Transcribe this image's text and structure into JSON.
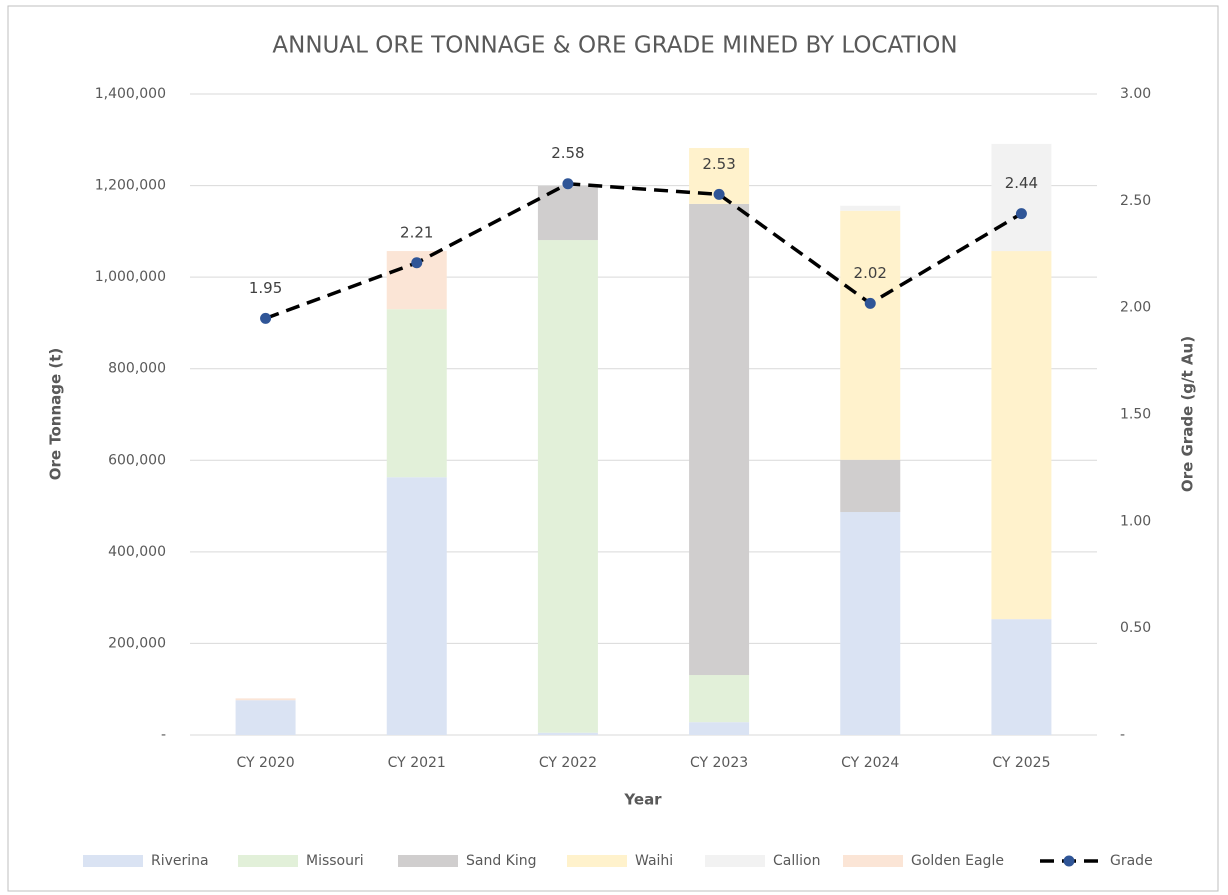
{
  "chart_data": {
    "type": "stacked-bar-line",
    "title": "ANNUAL ORE TONNAGE & ORE GRADE MINED BY LOCATION",
    "x_label": "Year",
    "y_label": "Ore Tonnage  (t)",
    "y2_label": "Ore Grade  (g/t Au)",
    "categories": [
      "CY 2020",
      "CY 2021",
      "CY 2022",
      "CY 2023",
      "CY 2024",
      "CY 2025"
    ],
    "series": [
      {
        "name": "Riverina",
        "color": "#dae3f3",
        "values": [
          76000,
          563000,
          5000,
          28000,
          487000,
          253000
        ]
      },
      {
        "name": "Missouri",
        "color": "#e2f0d9",
        "values": [
          0,
          367000,
          1076000,
          103000,
          0,
          0
        ]
      },
      {
        "name": "Sand King",
        "color": "#d0cece",
        "values": [
          0,
          0,
          118000,
          1029000,
          114000,
          0
        ]
      },
      {
        "name": "Waihi",
        "color": "#fff2cc",
        "values": [
          0,
          0,
          0,
          122000,
          544000,
          804000
        ]
      },
      {
        "name": "Callion",
        "color": "#f2f2f2",
        "values": [
          0,
          0,
          0,
          0,
          11000,
          234000
        ]
      },
      {
        "name": "Golden Eagle",
        "color": "#fbe5d6",
        "values": [
          4000,
          127000,
          0,
          0,
          0,
          0
        ]
      },
      {
        "name": "Grade",
        "color": "#000000",
        "marker_color": "#2f5597",
        "axis": "y2",
        "values": [
          1.95,
          2.21,
          2.58,
          2.53,
          2.02,
          2.44
        ]
      }
    ],
    "ylim": [
      0,
      1400000
    ],
    "yticks": [
      {
        "value": 0,
        "label": "-"
      },
      {
        "value": 200000,
        "label": "200,000"
      },
      {
        "value": 400000,
        "label": "400,000"
      },
      {
        "value": 600000,
        "label": "600,000"
      },
      {
        "value": 800000,
        "label": "800,000"
      },
      {
        "value": 1000000,
        "label": "1,000,000"
      },
      {
        "value": 1200000,
        "label": "1,200,000"
      },
      {
        "value": 1400000,
        "label": "1,400,000"
      }
    ],
    "y2lim": [
      0,
      3
    ],
    "y2ticks": [
      {
        "value": 0,
        "label": "-"
      },
      {
        "value": 0.5,
        "label": "0.50"
      },
      {
        "value": 1,
        "label": "1.00"
      },
      {
        "value": 1.5,
        "label": "1.50"
      },
      {
        "value": 2,
        "label": "2.00"
      },
      {
        "value": 2.5,
        "label": "2.50"
      },
      {
        "value": 3,
        "label": "3.00"
      }
    ],
    "grid": true,
    "legend": "bottom"
  }
}
